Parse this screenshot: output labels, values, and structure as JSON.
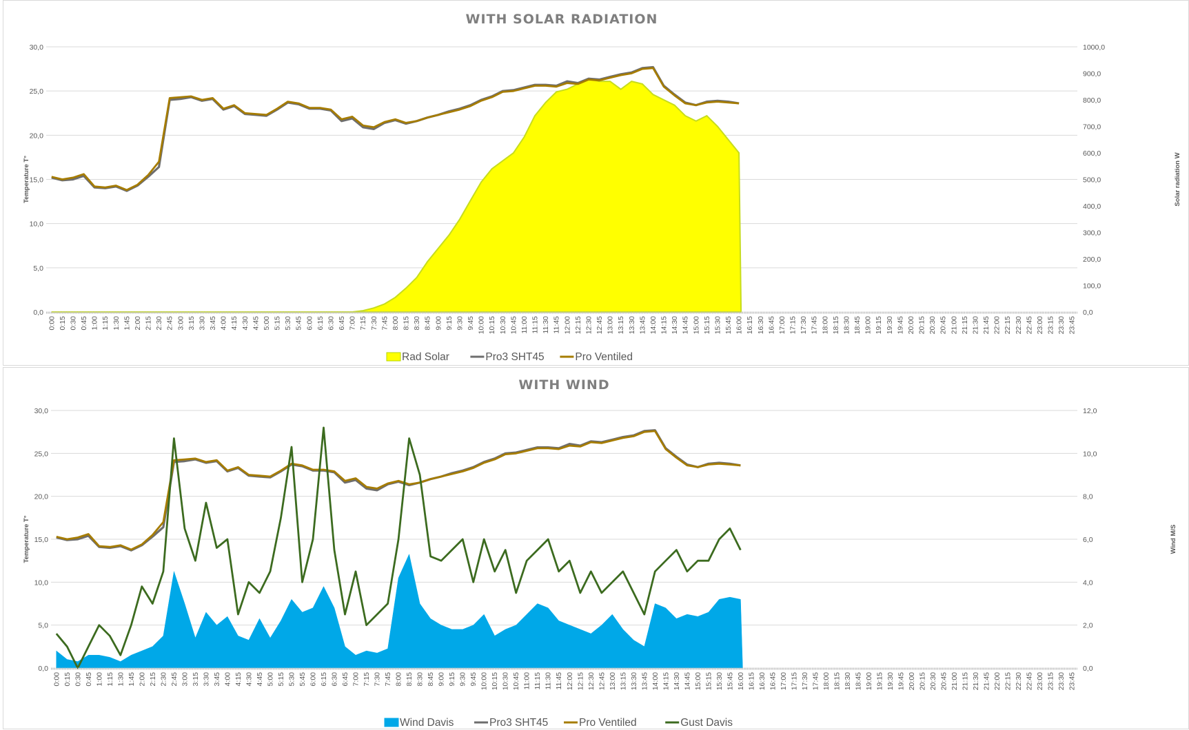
{
  "chart_data": [
    {
      "type": "area+line",
      "title": "WITH SOLAR RADIATION",
      "ylabel": "Temperature T°",
      "y2label": "Solar radiation W",
      "ylim": [
        0,
        30
      ],
      "y2lim": [
        0,
        1000
      ],
      "yticks": [
        "0,0",
        "5,0",
        "10,0",
        "15,0",
        "20,0",
        "25,0",
        "30,0"
      ],
      "y2ticks": [
        "0,0",
        "100,0",
        "200,0",
        "300,0",
        "400,0",
        "500,0",
        "600,0",
        "700,0",
        "800,0",
        "900,0",
        "1000,0"
      ],
      "grid": true,
      "legend_position": "bottom",
      "series": [
        {
          "name": "Rad Solar",
          "kind": "area",
          "axis": "right",
          "color": "#ffff00",
          "values": [
            0,
            0,
            0,
            0,
            0,
            0,
            0,
            0,
            0,
            0,
            0,
            0,
            0,
            0,
            0,
            0,
            0,
            0,
            0,
            0,
            0,
            0,
            0,
            0,
            0,
            0,
            0,
            0,
            0,
            5,
            15,
            30,
            55,
            90,
            130,
            190,
            240,
            290,
            350,
            420,
            490,
            540,
            570,
            600,
            660,
            740,
            790,
            830,
            840,
            860,
            880,
            870,
            870,
            840,
            870,
            860,
            820,
            800,
            780,
            740,
            720,
            740,
            700,
            650,
            600
          ]
        },
        {
          "name": "Pro3 SHT45",
          "kind": "line",
          "axis": "left",
          "color": "#6e6e6e",
          "values": [
            15.2,
            14.9,
            15.0,
            15.4,
            14.1,
            14.0,
            14.2,
            13.7,
            14.3,
            15.3,
            16.4,
            24.0,
            24.1,
            24.3,
            23.9,
            24.1,
            22.9,
            23.3,
            22.4,
            22.3,
            22.2,
            22.9,
            23.7,
            23.5,
            23.0,
            23.0,
            22.8,
            21.6,
            21.9,
            20.9,
            20.7,
            21.4,
            21.7,
            21.3,
            21.6,
            22.0,
            22.3,
            22.7,
            23.0,
            23.4,
            24.0,
            24.4,
            25.0,
            25.1,
            25.4,
            25.7,
            25.7,
            25.6,
            26.1,
            25.9,
            26.4,
            26.3,
            26.6,
            26.9,
            27.1,
            27.6,
            27.7,
            25.6,
            24.6,
            23.7,
            23.4,
            23.8,
            23.9,
            23.8,
            23.6
          ]
        },
        {
          "name": "Pro Ventiled",
          "kind": "line",
          "axis": "left",
          "color": "#a67c00",
          "values": [
            15.3,
            15.0,
            15.2,
            15.6,
            14.2,
            14.1,
            14.3,
            13.8,
            14.4,
            15.5,
            17.0,
            24.2,
            24.3,
            24.4,
            24.0,
            24.2,
            23.0,
            23.4,
            22.5,
            22.4,
            22.3,
            23.0,
            23.8,
            23.6,
            23.1,
            23.1,
            22.9,
            21.8,
            22.1,
            21.1,
            20.9,
            21.5,
            21.8,
            21.4,
            21.6,
            22.0,
            22.3,
            22.6,
            22.9,
            23.3,
            23.9,
            24.3,
            24.9,
            25.0,
            25.3,
            25.6,
            25.6,
            25.5,
            25.9,
            25.8,
            26.3,
            26.2,
            26.5,
            26.8,
            27.0,
            27.5,
            27.6,
            25.5,
            24.5,
            23.6,
            23.4,
            23.7,
            23.8,
            23.7,
            23.6
          ]
        }
      ]
    },
    {
      "type": "area+line",
      "title": "WITH WIND",
      "ylabel": "Temperature T°",
      "y2label": "Wind M/S",
      "ylim": [
        0,
        30
      ],
      "y2lim": [
        0,
        12
      ],
      "yticks": [
        "0,0",
        "5,0",
        "10,0",
        "15,0",
        "20,0",
        "25,0",
        "30,0"
      ],
      "y2ticks": [
        "0,0",
        "2,0",
        "4,0",
        "6,0",
        "8,0",
        "10,0",
        "12,0"
      ],
      "grid": true,
      "legend_position": "bottom",
      "series": [
        {
          "name": "Wind Davis",
          "kind": "area",
          "axis": "right",
          "color": "#00a8e8",
          "values": [
            0.8,
            0.4,
            0.3,
            0.6,
            0.6,
            0.5,
            0.3,
            0.6,
            0.8,
            1.0,
            1.5,
            4.5,
            3.0,
            1.4,
            2.6,
            2.0,
            2.4,
            1.5,
            1.3,
            2.3,
            1.4,
            2.2,
            3.2,
            2.6,
            2.8,
            3.8,
            2.8,
            1.0,
            0.6,
            0.8,
            0.7,
            0.9,
            4.2,
            5.3,
            3.0,
            2.3,
            2.0,
            1.8,
            1.8,
            2.0,
            2.5,
            1.5,
            1.8,
            2.0,
            2.5,
            3.0,
            2.8,
            2.2,
            2.0,
            1.8,
            1.6,
            2.0,
            2.5,
            1.8,
            1.3,
            1.0,
            3.0,
            2.8,
            2.3,
            2.5,
            2.4,
            2.6,
            3.2,
            3.3,
            3.2
          ]
        },
        {
          "name": "Pro3 SHT45",
          "kind": "line",
          "axis": "left",
          "color": "#6e6e6e",
          "values": [
            15.2,
            14.9,
            15.0,
            15.4,
            14.1,
            14.0,
            14.2,
            13.7,
            14.3,
            15.3,
            16.4,
            24.0,
            24.1,
            24.3,
            23.9,
            24.1,
            22.9,
            23.3,
            22.4,
            22.3,
            22.2,
            22.9,
            23.7,
            23.5,
            23.0,
            23.0,
            22.8,
            21.6,
            21.9,
            20.9,
            20.7,
            21.4,
            21.7,
            21.3,
            21.6,
            22.0,
            22.3,
            22.7,
            23.0,
            23.4,
            24.0,
            24.4,
            25.0,
            25.1,
            25.4,
            25.7,
            25.7,
            25.6,
            26.1,
            25.9,
            26.4,
            26.3,
            26.6,
            26.9,
            27.1,
            27.6,
            27.7,
            25.6,
            24.6,
            23.7,
            23.4,
            23.8,
            23.9,
            23.8,
            23.6
          ]
        },
        {
          "name": "Pro Ventiled",
          "kind": "line",
          "axis": "left",
          "color": "#a67c00",
          "values": [
            15.3,
            15.0,
            15.2,
            15.6,
            14.2,
            14.1,
            14.3,
            13.8,
            14.4,
            15.5,
            17.0,
            24.2,
            24.3,
            24.4,
            24.0,
            24.2,
            23.0,
            23.4,
            22.5,
            22.4,
            22.3,
            23.0,
            23.8,
            23.6,
            23.1,
            23.1,
            22.9,
            21.8,
            22.1,
            21.1,
            20.9,
            21.5,
            21.8,
            21.4,
            21.6,
            22.0,
            22.3,
            22.6,
            22.9,
            23.3,
            23.9,
            24.3,
            24.9,
            25.0,
            25.3,
            25.6,
            25.6,
            25.5,
            25.9,
            25.8,
            26.3,
            26.2,
            26.5,
            26.8,
            27.0,
            27.5,
            27.6,
            25.5,
            24.5,
            23.6,
            23.4,
            23.7,
            23.8,
            23.7,
            23.6
          ]
        },
        {
          "name": "Gust Davis",
          "kind": "line",
          "axis": "right",
          "color": "#3c6b1f",
          "values": [
            1.6,
            1.0,
            0.0,
            1.0,
            2.0,
            1.5,
            0.6,
            2.0,
            3.8,
            3.0,
            4.5,
            10.7,
            6.5,
            5.0,
            7.7,
            5.6,
            6.0,
            2.5,
            4.0,
            3.5,
            4.5,
            7.0,
            10.3,
            4.0,
            6.0,
            11.2,
            5.5,
            2.5,
            4.5,
            2.0,
            2.5,
            3.0,
            6.0,
            10.7,
            9.0,
            5.2,
            5.0,
            5.5,
            6.0,
            4.0,
            6.0,
            4.5,
            5.5,
            3.5,
            5.0,
            5.5,
            6.0,
            4.5,
            5.0,
            3.5,
            4.5,
            3.5,
            4.0,
            4.5,
            3.5,
            2.5,
            4.5,
            5.0,
            5.5,
            4.5,
            5.0,
            5.0,
            6.0,
            6.5,
            5.5
          ]
        }
      ]
    }
  ],
  "x_labels": [
    "0:00",
    "0:15",
    "0:30",
    "0:45",
    "1:00",
    "1:15",
    "1:30",
    "1:45",
    "2:00",
    "2:15",
    "2:30",
    "2:45",
    "3:00",
    "3:15",
    "3:30",
    "3:45",
    "4:00",
    "4:15",
    "4:30",
    "4:45",
    "5:00",
    "5:15",
    "5:30",
    "5:45",
    "6:00",
    "6:15",
    "6:30",
    "6:45",
    "7:00",
    "7:15",
    "7:30",
    "7:45",
    "8:00",
    "8:15",
    "8:30",
    "8:45",
    "9:00",
    "9:15",
    "9:30",
    "9:45",
    "10:00",
    "10:15",
    "10:30",
    "10:45",
    "11:00",
    "11:15",
    "11:30",
    "11:45",
    "12:00",
    "12:15",
    "12:30",
    "12:45",
    "13:00",
    "13:15",
    "13:30",
    "13:45",
    "14:00",
    "14:15",
    "14:30",
    "14:45",
    "15:00",
    "15:15",
    "15:30",
    "15:45",
    "16:00",
    "16:15",
    "16:30",
    "16:45",
    "17:00",
    "17:15",
    "17:30",
    "17:45",
    "18:00",
    "18:15",
    "18:30",
    "18:45",
    "19:00",
    "19:15",
    "19:30",
    "19:45",
    "20:00",
    "20:15",
    "20:30",
    "20:45",
    "21:00",
    "21:15",
    "21:30",
    "21:45",
    "22:00",
    "22:15",
    "22:30",
    "22:45",
    "23:00",
    "23:15",
    "23:30",
    "23:45"
  ]
}
